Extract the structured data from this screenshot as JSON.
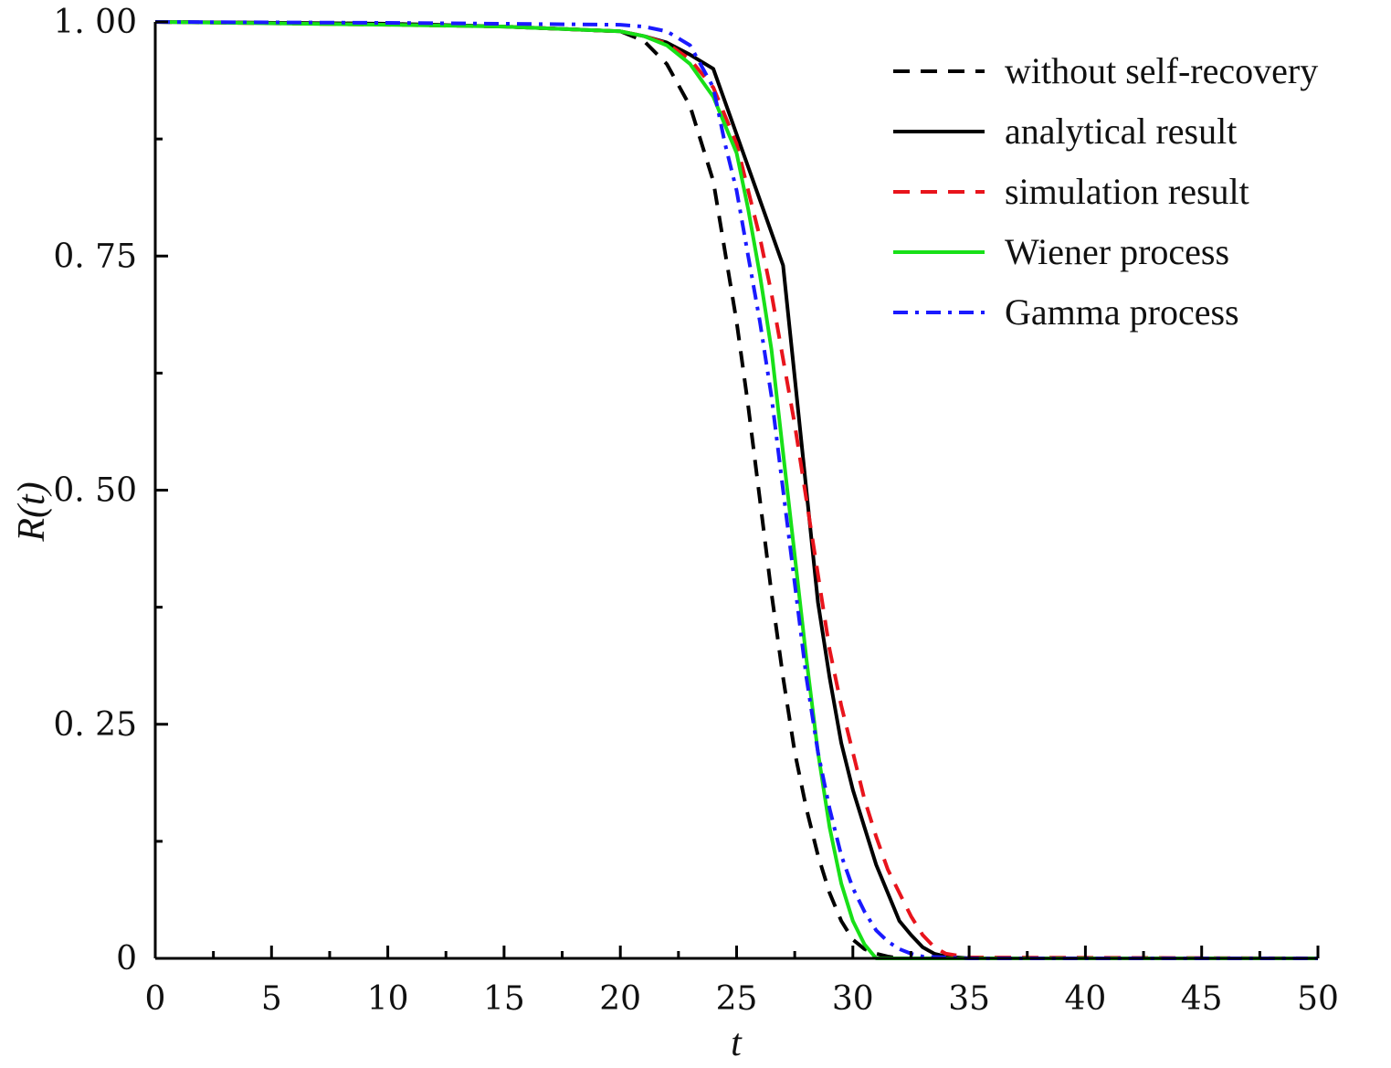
{
  "chart_data": {
    "type": "line",
    "xlabel": "t",
    "ylabel": "R(t)",
    "xlim": [
      0,
      50
    ],
    "ylim": [
      0,
      1
    ],
    "x_ticks": [
      0,
      5,
      10,
      15,
      20,
      25,
      30,
      35,
      40,
      45,
      50
    ],
    "x_tick_labels": [
      "0",
      "5",
      "10",
      "15",
      "20",
      "25",
      "30",
      "35",
      "40",
      "45",
      "50"
    ],
    "y_ticks": [
      0,
      0.25,
      0.5,
      0.75,
      1.0
    ],
    "y_tick_labels": [
      "0",
      "0. 25",
      "0. 50",
      "0. 75",
      "1. 00"
    ],
    "grid": false,
    "legend_position": "top-right",
    "series": [
      {
        "name": "without self-recovery",
        "color": "#000000",
        "style": "dashed",
        "x": [
          0,
          10,
          15,
          20,
          21,
          22,
          23,
          24,
          25,
          25.5,
          26,
          26.5,
          27,
          27.5,
          28,
          28.5,
          29,
          29.5,
          30,
          30.5,
          31,
          31.5,
          32,
          33,
          35,
          50
        ],
        "y": [
          1.0,
          0.998,
          0.995,
          0.99,
          0.98,
          0.955,
          0.91,
          0.83,
          0.68,
          0.59,
          0.49,
          0.39,
          0.3,
          0.22,
          0.16,
          0.11,
          0.07,
          0.04,
          0.02,
          0.01,
          0.005,
          0.002,
          0.0,
          0.0,
          0.0,
          0.0
        ]
      },
      {
        "name": "analytical result",
        "color": "#000000",
        "style": "solid",
        "x": [
          0,
          10,
          15,
          20,
          21,
          22,
          23,
          24,
          25,
          26,
          27,
          27.5,
          28,
          28.5,
          29,
          29.5,
          30,
          30.5,
          31,
          31.5,
          32,
          32.5,
          33,
          33.5,
          34,
          35,
          50
        ],
        "y": [
          1.0,
          0.998,
          0.995,
          0.99,
          0.985,
          0.978,
          0.965,
          0.95,
          0.88,
          0.81,
          0.74,
          0.62,
          0.5,
          0.38,
          0.3,
          0.23,
          0.18,
          0.14,
          0.1,
          0.07,
          0.04,
          0.025,
          0.012,
          0.005,
          0.002,
          0.0,
          0.0
        ]
      },
      {
        "name": "simulation result",
        "color": "#e8141c",
        "style": "dashed",
        "x": [
          0,
          10,
          15,
          20,
          21,
          22,
          23,
          24,
          25,
          25.5,
          26,
          26.5,
          27,
          27.5,
          28,
          28.5,
          29,
          29.5,
          30,
          30.5,
          31,
          31.5,
          32,
          32.5,
          33,
          33.5,
          34,
          35,
          50
        ],
        "y": [
          1.0,
          0.997,
          0.995,
          0.99,
          0.985,
          0.977,
          0.96,
          0.93,
          0.87,
          0.82,
          0.77,
          0.71,
          0.64,
          0.57,
          0.49,
          0.41,
          0.33,
          0.27,
          0.22,
          0.17,
          0.13,
          0.095,
          0.07,
          0.045,
          0.025,
          0.012,
          0.005,
          0.001,
          0.0
        ]
      },
      {
        "name": "Wiener process",
        "color": "#18e018",
        "style": "solid",
        "x": [
          0,
          10,
          15,
          20,
          21,
          22,
          23,
          24,
          25,
          25.5,
          26,
          26.5,
          27,
          27.5,
          28,
          28.5,
          29,
          29.5,
          30,
          30.5,
          31,
          32,
          35,
          50
        ],
        "y": [
          1.0,
          0.997,
          0.995,
          0.99,
          0.985,
          0.975,
          0.955,
          0.92,
          0.86,
          0.8,
          0.73,
          0.65,
          0.54,
          0.43,
          0.32,
          0.22,
          0.14,
          0.08,
          0.04,
          0.015,
          0.0,
          0.0,
          0.0,
          0.0
        ]
      },
      {
        "name": "Gamma process",
        "color": "#1a1aff",
        "style": "dashdot",
        "x": [
          0,
          10,
          15,
          20,
          21,
          22,
          23,
          24,
          24.5,
          25,
          25.5,
          26,
          26.5,
          27,
          27.5,
          28,
          28.5,
          29,
          29.5,
          30,
          30.5,
          31,
          31.5,
          32,
          32.5,
          33,
          34,
          35,
          50
        ],
        "y": [
          1.0,
          0.999,
          0.998,
          0.997,
          0.995,
          0.99,
          0.975,
          0.93,
          0.87,
          0.82,
          0.75,
          0.68,
          0.6,
          0.5,
          0.4,
          0.3,
          0.22,
          0.16,
          0.11,
          0.075,
          0.05,
          0.03,
          0.018,
          0.01,
          0.005,
          0.002,
          0.001,
          0.0,
          0.0
        ]
      }
    ]
  }
}
